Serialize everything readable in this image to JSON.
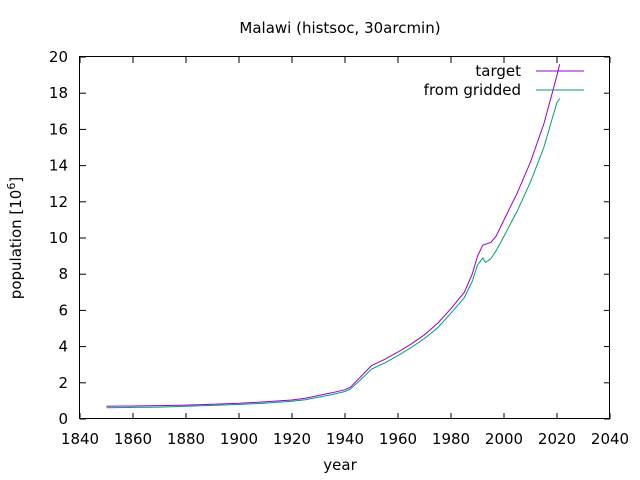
{
  "chart_data": {
    "type": "line",
    "title": "Malawi (histsoc, 30arcmin)",
    "xlabel": "year",
    "ylabel": "population [10",
    "ylabel_superscript": "6",
    "ylabel_suffix": "]",
    "xlim": [
      1840,
      2040
    ],
    "ylim": [
      0,
      20
    ],
    "xticks": [
      1840,
      1860,
      1880,
      1900,
      1920,
      1940,
      1960,
      1980,
      2000,
      2020,
      2040
    ],
    "yticks": [
      0,
      2,
      4,
      6,
      8,
      10,
      12,
      14,
      16,
      18,
      20
    ],
    "grid": false,
    "legend_position": "top-right",
    "series": [
      {
        "name": "target",
        "color": "#9400d3",
        "x": [
          1850,
          1860,
          1870,
          1880,
          1890,
          1900,
          1910,
          1920,
          1925,
          1930,
          1935,
          1940,
          1942,
          1945,
          1950,
          1955,
          1960,
          1965,
          1970,
          1975,
          1980,
          1985,
          1988,
          1990,
          1992,
          1995,
          1997,
          2000,
          2005,
          2010,
          2015,
          2018,
          2020,
          2021
        ],
        "y": [
          0.7,
          0.72,
          0.74,
          0.77,
          0.82,
          0.87,
          0.95,
          1.05,
          1.15,
          1.3,
          1.45,
          1.62,
          1.75,
          2.2,
          2.95,
          3.3,
          3.7,
          4.15,
          4.65,
          5.3,
          6.1,
          7.0,
          8.0,
          9.0,
          9.6,
          9.75,
          10.1,
          11.0,
          12.5,
          14.2,
          16.3,
          17.9,
          19.0,
          19.6
        ]
      },
      {
        "name": "from gridded",
        "color": "#009e73",
        "x": [
          1850,
          1860,
          1870,
          1880,
          1890,
          1900,
          1910,
          1920,
          1925,
          1930,
          1935,
          1940,
          1942,
          1945,
          1950,
          1955,
          1960,
          1965,
          1970,
          1975,
          1980,
          1985,
          1988,
          1990,
          1992,
          1993,
          1995,
          1997,
          2000,
          2005,
          2010,
          2015,
          2018,
          2020,
          2021
        ],
        "y": [
          0.62,
          0.64,
          0.66,
          0.7,
          0.75,
          0.8,
          0.88,
          0.98,
          1.06,
          1.2,
          1.35,
          1.52,
          1.65,
          2.05,
          2.75,
          3.1,
          3.5,
          3.95,
          4.45,
          5.05,
          5.85,
          6.7,
          7.6,
          8.5,
          8.9,
          8.65,
          8.85,
          9.3,
          10.1,
          11.5,
          13.1,
          15.0,
          16.5,
          17.5,
          17.7
        ]
      }
    ]
  }
}
